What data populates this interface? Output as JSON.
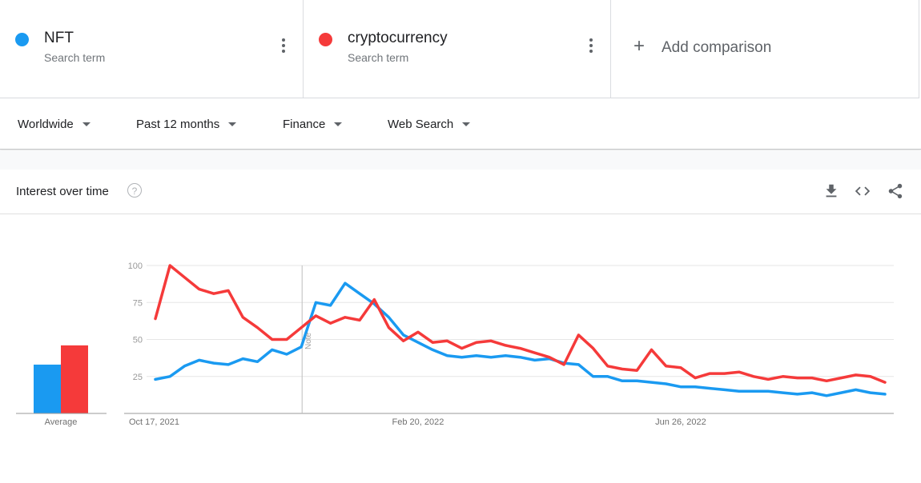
{
  "terms": [
    {
      "name": "NFT",
      "sub": "Search term",
      "color": "#1a9af1"
    },
    {
      "name": "cryptocurrency",
      "sub": "Search term",
      "color": "#f53a3a"
    }
  ],
  "add_comparison": "Add comparison",
  "filters": {
    "region": "Worldwide",
    "period": "Past 12 months",
    "category": "Finance",
    "search_type": "Web Search"
  },
  "card": {
    "title": "Interest over time",
    "help": "?"
  },
  "toolbar": {
    "icons": [
      "download-icon",
      "embed-code-icon",
      "share-icon"
    ]
  },
  "chart_data": {
    "type": "line",
    "ylim": [
      0,
      100
    ],
    "yticks": [
      25,
      50,
      75,
      100
    ],
    "xtick_labels": [
      "Oct 17, 2021",
      "Feb 20, 2022",
      "Jun 26, 2022"
    ],
    "xtick_positions": [
      0,
      18,
      36
    ],
    "annotation": {
      "label": "Note",
      "index": 10
    },
    "average_label": "Average",
    "average": [
      {
        "name": "NFT",
        "value": 33
      },
      {
        "name": "cryptocurrency",
        "value": 46
      }
    ],
    "series": [
      {
        "name": "NFT",
        "color": "#1a9af1",
        "values": [
          23,
          25,
          32,
          36,
          34,
          33,
          37,
          35,
          43,
          40,
          45,
          75,
          73,
          88,
          81,
          74,
          65,
          53,
          48,
          43,
          39,
          38,
          39,
          38,
          39,
          38,
          36,
          37,
          34,
          33,
          25,
          25,
          22,
          22,
          21,
          20,
          18,
          18,
          17,
          16,
          15,
          15,
          15,
          14,
          13,
          14,
          12,
          14,
          16,
          14,
          13
        ]
      },
      {
        "name": "cryptocurrency",
        "color": "#f53a3a",
        "values": [
          64,
          100,
          92,
          84,
          81,
          83,
          65,
          58,
          50,
          50,
          58,
          66,
          61,
          65,
          63,
          77,
          58,
          49,
          55,
          48,
          49,
          44,
          48,
          49,
          46,
          44,
          41,
          38,
          33,
          53,
          44,
          32,
          30,
          29,
          43,
          32,
          31,
          24,
          27,
          27,
          28,
          25,
          23,
          25,
          24,
          24,
          22,
          24,
          26,
          25,
          21
        ]
      }
    ]
  }
}
